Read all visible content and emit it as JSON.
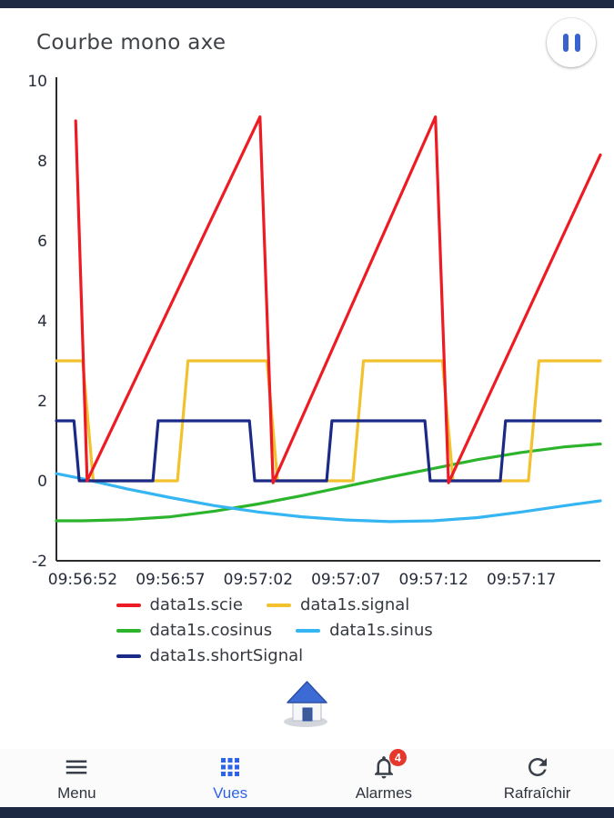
{
  "header": {
    "title": "Courbe mono axe",
    "pause_button_icon": "pause-icon"
  },
  "colors": {
    "accent": "#2d63e8",
    "pause_icon": "#3a63cd",
    "badge": "#e5372c",
    "system_bar": "#1d2942",
    "axis": "#2b2b2b"
  },
  "chart_data": {
    "type": "line",
    "title": "Courbe mono axe",
    "grid": false,
    "legend_position": "bottom",
    "x_axis": {
      "range_seconds": [
        -1.5,
        29.5
      ],
      "tick_seconds": [
        0,
        5,
        10,
        15,
        20,
        25
      ],
      "tick_labels": [
        "09:56:52",
        "09:56:57",
        "09:57:02",
        "09:57:07",
        "09:57:12",
        "09:57:17"
      ]
    },
    "y_axis": {
      "range": [
        -2,
        10
      ],
      "ticks": [
        -2,
        0,
        2,
        4,
        6,
        8,
        10
      ]
    },
    "draw_order": [
      2,
      3,
      1,
      4,
      0
    ],
    "series": [
      {
        "name": "data1s.scie",
        "color": "#ed1c24",
        "points": [
          [
            -0.4,
            9.0
          ],
          [
            0.25,
            0
          ],
          [
            10.1,
            9.1
          ],
          [
            10.85,
            -0.05
          ],
          [
            20.1,
            9.1
          ],
          [
            20.85,
            -0.05
          ],
          [
            29.5,
            8.15
          ]
        ]
      },
      {
        "name": "data1s.signal",
        "color": "#f2c12e",
        "points": [
          [
            -1.5,
            3
          ],
          [
            0.0,
            3
          ],
          [
            0.6,
            0
          ],
          [
            5.4,
            0
          ],
          [
            6.0,
            3
          ],
          [
            10.5,
            3
          ],
          [
            11.1,
            0
          ],
          [
            15.4,
            0
          ],
          [
            16.0,
            3
          ],
          [
            20.5,
            3
          ],
          [
            21.1,
            0
          ],
          [
            25.4,
            0
          ],
          [
            26.0,
            3
          ],
          [
            29.5,
            3
          ]
        ]
      },
      {
        "name": "data1s.cosinus",
        "color": "#2cb42c",
        "points": [
          [
            -1.5,
            -1.0
          ],
          [
            0,
            -1.0
          ],
          [
            2.5,
            -0.97
          ],
          [
            5,
            -0.9
          ],
          [
            7.5,
            -0.76
          ],
          [
            10,
            -0.58
          ],
          [
            12.5,
            -0.37
          ],
          [
            15,
            -0.14
          ],
          [
            17.5,
            0.09
          ],
          [
            20,
            0.31
          ],
          [
            22.5,
            0.53
          ],
          [
            25,
            0.71
          ],
          [
            27.5,
            0.85
          ],
          [
            29.5,
            0.92
          ]
        ]
      },
      {
        "name": "data1s.sinus",
        "color": "#35b5f2",
        "points": [
          [
            -1.5,
            0.18
          ],
          [
            0,
            0.05
          ],
          [
            2.5,
            -0.2
          ],
          [
            5,
            -0.42
          ],
          [
            7.5,
            -0.62
          ],
          [
            10,
            -0.78
          ],
          [
            12.5,
            -0.9
          ],
          [
            15,
            -0.98
          ],
          [
            17.5,
            -1.02
          ],
          [
            20,
            -1.0
          ],
          [
            22.5,
            -0.92
          ],
          [
            25,
            -0.78
          ],
          [
            27.5,
            -0.62
          ],
          [
            29.5,
            -0.5
          ]
        ]
      },
      {
        "name": "data1s.shortSignal",
        "color": "#1b2a86",
        "points": [
          [
            -1.5,
            1.5
          ],
          [
            -0.5,
            1.5
          ],
          [
            -0.2,
            0
          ],
          [
            4.0,
            0
          ],
          [
            4.3,
            1.5
          ],
          [
            9.5,
            1.5
          ],
          [
            9.8,
            0
          ],
          [
            13.9,
            0
          ],
          [
            14.2,
            1.5
          ],
          [
            19.5,
            1.5
          ],
          [
            19.8,
            0
          ],
          [
            23.8,
            0
          ],
          [
            24.1,
            1.5
          ],
          [
            29.5,
            1.5
          ]
        ]
      }
    ]
  },
  "home_button": {
    "icon": "home-icon"
  },
  "bottom_nav": {
    "items": [
      {
        "label": "Menu",
        "icon": "menu-icon",
        "active": false
      },
      {
        "label": "Vues",
        "icon": "grid-icon",
        "active": true
      },
      {
        "label": "Alarmes",
        "icon": "bell-icon",
        "badge": "4",
        "active": false
      },
      {
        "label": "Rafraîchir",
        "icon": "refresh-icon",
        "active": false
      }
    ]
  }
}
